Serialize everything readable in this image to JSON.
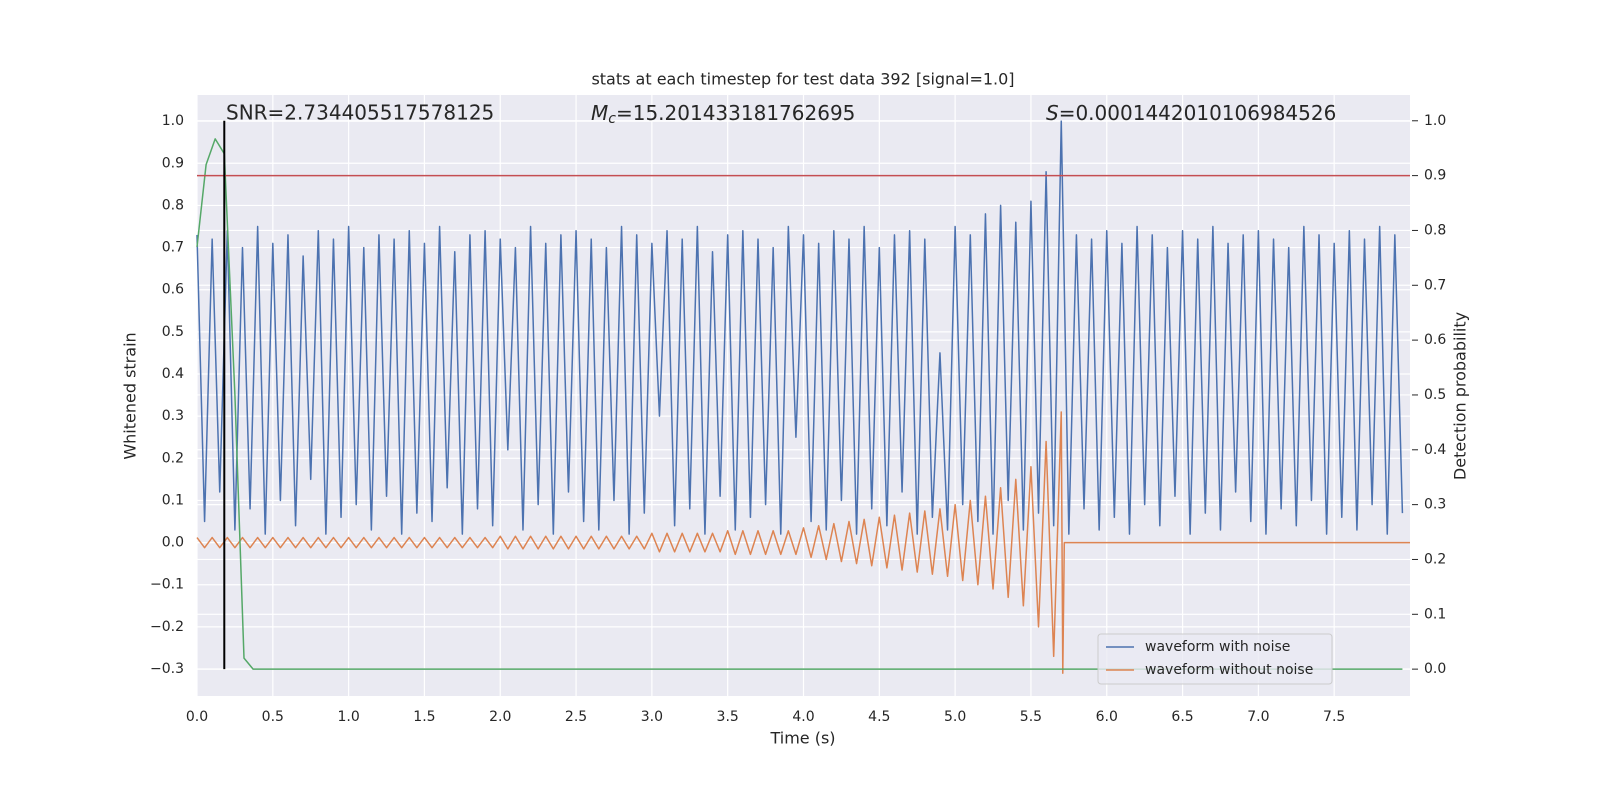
{
  "chart_data": {
    "type": "line",
    "title": "stats at each timestep for test data 392 [signal=1.0]",
    "xlabel": "Time (s)",
    "ylabel": "Whitened strain",
    "y2label": "Detection probability",
    "xlim": [
      0,
      8
    ],
    "ylim": [
      -0.364,
      1.062
    ],
    "y2lim": [
      -0.049,
      1.047
    ],
    "grid": true,
    "legend": "lower right",
    "xticks": [
      {
        "value": 0,
        "label": "0.0"
      },
      {
        "value": 0.5,
        "label": "0.5"
      },
      {
        "value": 1,
        "label": "1.0"
      },
      {
        "value": 1.5,
        "label": "1.5"
      },
      {
        "value": 2,
        "label": "2.0"
      },
      {
        "value": 2.5,
        "label": "2.5"
      },
      {
        "value": 3,
        "label": "3.0"
      },
      {
        "value": 3.5,
        "label": "3.5"
      },
      {
        "value": 4,
        "label": "4.0"
      },
      {
        "value": 4.5,
        "label": "4.5"
      },
      {
        "value": 5,
        "label": "5.0"
      },
      {
        "value": 5.5,
        "label": "5.5"
      },
      {
        "value": 6,
        "label": "6.0"
      },
      {
        "value": 6.5,
        "label": "6.5"
      },
      {
        "value": 7,
        "label": "7.0"
      },
      {
        "value": 7.5,
        "label": "7.5"
      }
    ],
    "yticks": [
      {
        "value": -0.3,
        "label": "−0.3"
      },
      {
        "value": -0.2,
        "label": "−0.2"
      },
      {
        "value": -0.1,
        "label": "−0.1"
      },
      {
        "value": 0,
        "label": "0.0"
      },
      {
        "value": 0.1,
        "label": "0.1"
      },
      {
        "value": 0.2,
        "label": "0.2"
      },
      {
        "value": 0.3,
        "label": "0.3"
      },
      {
        "value": 0.4,
        "label": "0.4"
      },
      {
        "value": 0.5,
        "label": "0.5"
      },
      {
        "value": 0.6,
        "label": "0.6"
      },
      {
        "value": 0.7,
        "label": "0.7"
      },
      {
        "value": 0.8,
        "label": "0.8"
      },
      {
        "value": 0.9,
        "label": "0.9"
      },
      {
        "value": 1,
        "label": "1.0"
      }
    ],
    "y2ticks": [
      {
        "value": 0,
        "label": "0.0"
      },
      {
        "value": 0.1,
        "label": "0.1"
      },
      {
        "value": 0.2,
        "label": "0.2"
      },
      {
        "value": 0.3,
        "label": "0.3"
      },
      {
        "value": 0.4,
        "label": "0.4"
      },
      {
        "value": 0.5,
        "label": "0.5"
      },
      {
        "value": 0.6,
        "label": "0.6"
      },
      {
        "value": 0.7,
        "label": "0.7"
      },
      {
        "value": 0.8,
        "label": "0.8"
      },
      {
        "value": 0.9,
        "label": "0.9"
      },
      {
        "value": 1,
        "label": "1.0"
      }
    ],
    "series": [
      {
        "name": "waveform with noise",
        "color": "#4c72b0",
        "x": [
          0,
          0.05,
          0.1,
          0.15,
          0.2,
          0.25,
          0.3,
          0.35,
          0.4,
          0.45,
          0.5,
          0.55,
          0.6,
          0.65,
          0.7,
          0.75,
          0.8,
          0.85,
          0.9,
          0.95,
          1,
          1.05,
          1.1,
          1.15,
          1.2,
          1.25,
          1.3,
          1.35,
          1.4,
          1.45,
          1.5,
          1.55,
          1.6,
          1.65,
          1.7,
          1.75,
          1.8,
          1.85,
          1.9,
          1.95,
          2,
          2.05,
          2.1,
          2.15,
          2.2,
          2.25,
          2.3,
          2.35,
          2.4,
          2.45,
          2.5,
          2.55,
          2.6,
          2.65,
          2.7,
          2.75,
          2.8,
          2.85,
          2.9,
          2.95,
          3,
          3.05,
          3.1,
          3.15,
          3.2,
          3.25,
          3.3,
          3.35,
          3.4,
          3.45,
          3.5,
          3.55,
          3.6,
          3.65,
          3.7,
          3.75,
          3.8,
          3.85,
          3.9,
          3.95,
          4,
          4.05,
          4.1,
          4.15,
          4.2,
          4.25,
          4.3,
          4.35,
          4.4,
          4.45,
          4.5,
          4.55,
          4.6,
          4.65,
          4.7,
          4.75,
          4.8,
          4.85,
          4.9,
          4.95,
          5,
          5.05,
          5.1,
          5.15,
          5.2,
          5.25,
          5.3,
          5.35,
          5.4,
          5.45,
          5.5,
          5.55,
          5.6,
          5.65,
          5.7,
          5.75,
          5.8,
          5.85,
          5.9,
          5.95,
          6,
          6.05,
          6.1,
          6.15,
          6.2,
          6.25,
          6.3,
          6.35,
          6.4,
          6.45,
          6.5,
          6.55,
          6.6,
          6.65,
          6.7,
          6.75,
          6.8,
          6.85,
          6.9,
          6.95,
          7,
          7.05,
          7.1,
          7.15,
          7.2,
          7.25,
          7.3,
          7.35,
          7.4,
          7.45,
          7.5,
          7.55,
          7.6,
          7.65,
          7.7,
          7.75,
          7.8,
          7.85,
          7.9,
          7.95
        ],
        "values": [
          0.73,
          0.05,
          0.72,
          0.12,
          0.74,
          0.03,
          0.7,
          0.08,
          0.75,
          0.02,
          0.71,
          0.1,
          0.73,
          0.04,
          0.68,
          0.15,
          0.74,
          0.02,
          0.72,
          0.06,
          0.75,
          0.09,
          0.7,
          0.03,
          0.73,
          0.11,
          0.72,
          0.02,
          0.74,
          0.07,
          0.71,
          0.05,
          0.75,
          0.13,
          0.69,
          0.02,
          0.73,
          0.08,
          0.74,
          0.04,
          0.72,
          0.22,
          0.7,
          0.03,
          0.75,
          0.09,
          0.71,
          0.02,
          0.73,
          0.12,
          0.74,
          0.05,
          0.72,
          0.03,
          0.7,
          0.1,
          0.75,
          0.02,
          0.73,
          0.07,
          0.71,
          0.3,
          0.74,
          0.04,
          0.72,
          0.08,
          0.75,
          0.02,
          0.69,
          0.11,
          0.73,
          0.03,
          0.74,
          0.06,
          0.72,
          0.09,
          0.7,
          0.02,
          0.75,
          0.25,
          0.73,
          0.05,
          0.71,
          0.03,
          0.74,
          0.1,
          0.72,
          0.02,
          0.75,
          0.08,
          0.7,
          0.04,
          0.73,
          0.12,
          0.74,
          0.02,
          0.72,
          0.06,
          0.45,
          0.03,
          0.75,
          0.09,
          0.73,
          0.05,
          0.78,
          0.02,
          0.8,
          0.1,
          0.76,
          0.03,
          0.81,
          0.07,
          0.88,
          0.04,
          1.0,
          0.02,
          0.73,
          0.08,
          0.72,
          0.03,
          0.74,
          0.06,
          0.71,
          0.02,
          0.75,
          0.09,
          0.73,
          0.04,
          0.7,
          0.11,
          0.74,
          0.02,
          0.72,
          0.07,
          0.75,
          0.03,
          0.71,
          0.12,
          0.73,
          0.05,
          0.74,
          0.02,
          0.72,
          0.08,
          0.7,
          0.04,
          0.75,
          0.1,
          0.73,
          0.02,
          0.71,
          0.06,
          0.74,
          0.03,
          0.72,
          0.09,
          0.75,
          0.02,
          0.73,
          0.07
        ]
      },
      {
        "name": "waveform without noise",
        "color": "#dd8452",
        "x": [
          0,
          0.05,
          0.1,
          0.15,
          0.2,
          0.25,
          0.3,
          0.35,
          0.4,
          0.45,
          0.5,
          0.55,
          0.6,
          0.65,
          0.7,
          0.75,
          0.8,
          0.85,
          0.9,
          0.95,
          1,
          1.05,
          1.1,
          1.15,
          1.2,
          1.25,
          1.3,
          1.35,
          1.4,
          1.45,
          1.5,
          1.55,
          1.6,
          1.65,
          1.7,
          1.75,
          1.8,
          1.85,
          1.9,
          1.95,
          2,
          2.05,
          2.1,
          2.15,
          2.2,
          2.25,
          2.3,
          2.35,
          2.4,
          2.45,
          2.5,
          2.55,
          2.6,
          2.65,
          2.7,
          2.75,
          2.8,
          2.85,
          2.9,
          2.95,
          3,
          3.05,
          3.1,
          3.15,
          3.2,
          3.25,
          3.3,
          3.35,
          3.4,
          3.45,
          3.5,
          3.55,
          3.6,
          3.65,
          3.7,
          3.75,
          3.8,
          3.85,
          3.9,
          3.95,
          4,
          4.05,
          4.1,
          4.15,
          4.2,
          4.25,
          4.3,
          4.35,
          4.4,
          4.45,
          4.5,
          4.55,
          4.6,
          4.65,
          4.7,
          4.75,
          4.8,
          4.85,
          4.9,
          4.95,
          5,
          5.05,
          5.1,
          5.15,
          5.2,
          5.25,
          5.3,
          5.35,
          5.4,
          5.45,
          5.5,
          5.55,
          5.6,
          5.65,
          5.7,
          5.71,
          5.72,
          8
        ],
        "values": [
          0.012,
          -0.012,
          0.012,
          -0.012,
          0.012,
          -0.012,
          0.012,
          -0.012,
          0.012,
          -0.012,
          0.012,
          -0.012,
          0.012,
          -0.012,
          0.012,
          -0.012,
          0.012,
          -0.012,
          0.012,
          -0.012,
          0.012,
          -0.012,
          0.012,
          -0.012,
          0.012,
          -0.012,
          0.012,
          -0.012,
          0.012,
          -0.012,
          0.012,
          -0.012,
          0.012,
          -0.012,
          0.012,
          -0.012,
          0.012,
          -0.012,
          0.012,
          -0.012,
          0.015,
          -0.015,
          0.015,
          -0.015,
          0.015,
          -0.015,
          0.015,
          -0.015,
          0.015,
          -0.015,
          0.015,
          -0.015,
          0.015,
          -0.015,
          0.015,
          -0.015,
          0.015,
          -0.015,
          0.015,
          -0.015,
          0.022,
          -0.022,
          0.022,
          -0.022,
          0.022,
          -0.022,
          0.022,
          -0.022,
          0.022,
          -0.022,
          0.028,
          -0.028,
          0.028,
          -0.028,
          0.028,
          -0.028,
          0.028,
          -0.028,
          0.028,
          -0.028,
          0.035,
          -0.035,
          0.04,
          -0.04,
          0.045,
          -0.045,
          0.05,
          -0.05,
          0.055,
          -0.055,
          0.06,
          -0.06,
          0.065,
          -0.065,
          0.07,
          -0.07,
          0.075,
          -0.075,
          0.08,
          -0.08,
          0.09,
          -0.09,
          0.1,
          -0.1,
          0.11,
          -0.11,
          0.13,
          -0.13,
          0.15,
          -0.15,
          0.18,
          -0.2,
          0.24,
          -0.27,
          0.31,
          -0.31,
          0,
          0
        ]
      },
      {
        "color": "#55a868",
        "axis": "y2",
        "x": [
          0,
          0.06,
          0.12,
          0.18,
          0.25,
          0.31,
          0.37,
          7.95
        ],
        "values": [
          0.77,
          0.92,
          0.967,
          0.94,
          0.5,
          0.02,
          0,
          0
        ]
      }
    ],
    "hlines": [
      {
        "y": 0.9,
        "axis": "y2",
        "color": "#c44e52"
      }
    ],
    "vlines": [
      {
        "x": 0.18,
        "ymin": 0,
        "ymax": 1,
        "axis": "y2",
        "color": "#000000"
      }
    ],
    "annotations": [
      {
        "text": "SNR=2.734405517578125"
      },
      {
        "symbol": "M",
        "subscript": "c",
        "text": "=15.201433181762695"
      },
      {
        "symbol": "S",
        "text": "=0.0001442010106984526"
      }
    ]
  }
}
